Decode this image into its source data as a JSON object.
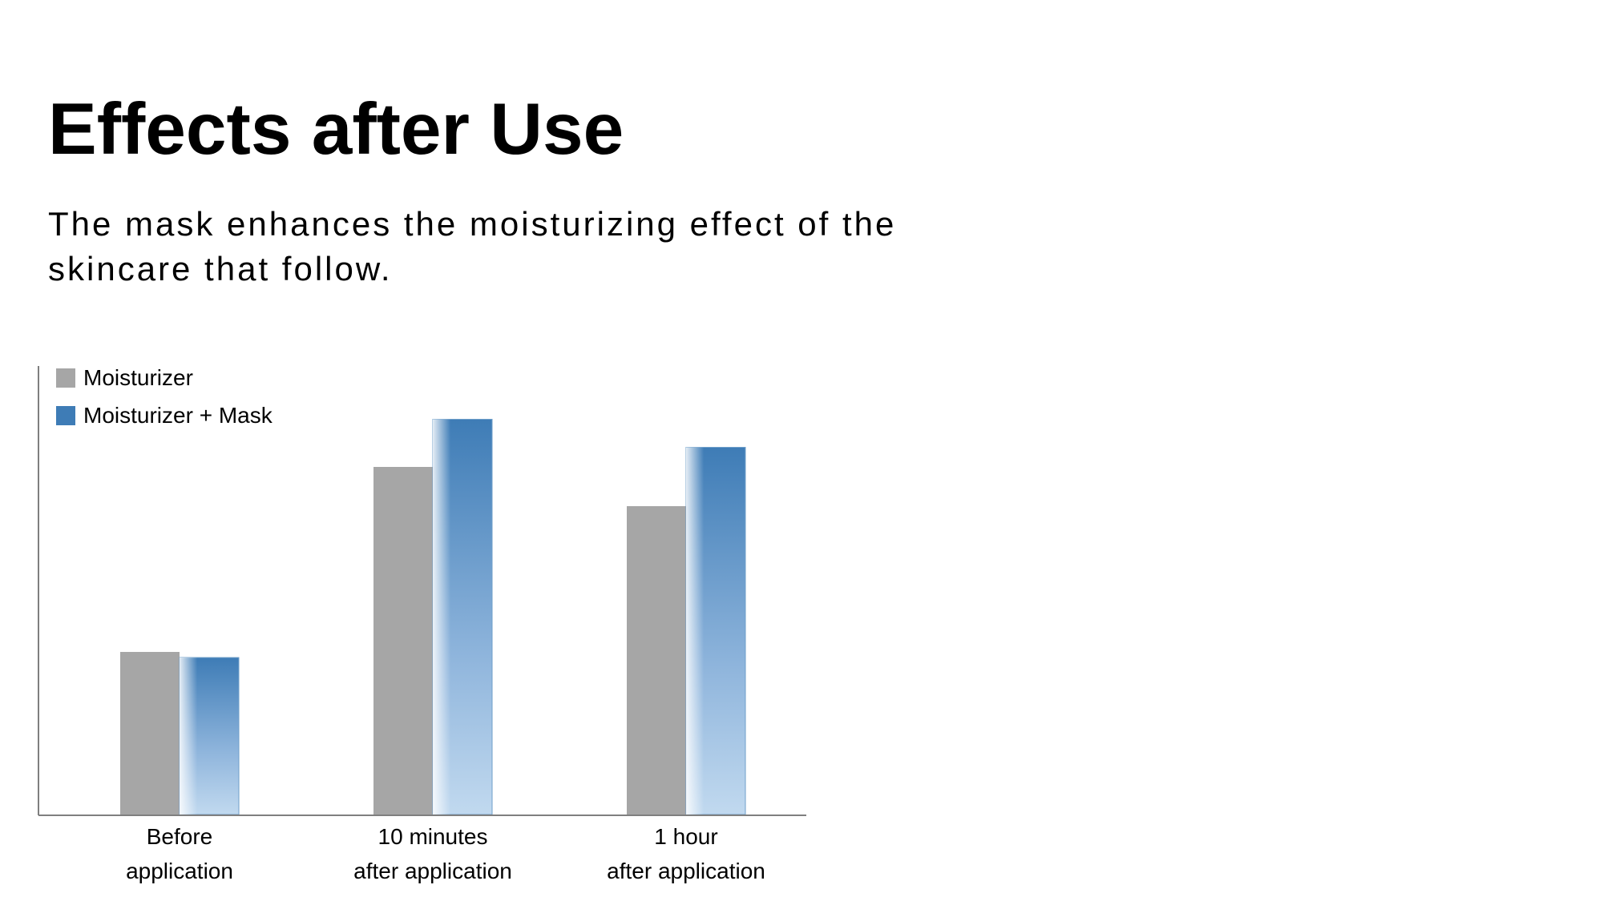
{
  "slide": {
    "title": "Effects after Use",
    "subtitle": "The mask enhances the moisturizing effect of the skincare that follow."
  },
  "chart_data": {
    "type": "bar",
    "categories": [
      [
        "Before",
        "application"
      ],
      [
        "10 minutes",
        "after application"
      ],
      [
        "1 hour",
        "after application"
      ]
    ],
    "series": [
      {
        "name": "Moisturizer",
        "values": [
          29,
          62,
          55
        ],
        "color": "#a6a6a6"
      },
      {
        "name": "Moisturizer + Mask",
        "values": [
          28,
          70.5,
          65.5
        ],
        "color": "#3e7cb6",
        "color_light": "#c1d9ef"
      }
    ],
    "ylim": [
      0,
      80
    ],
    "legend": "top-left",
    "grid": false,
    "y_axis_labels": false
  }
}
